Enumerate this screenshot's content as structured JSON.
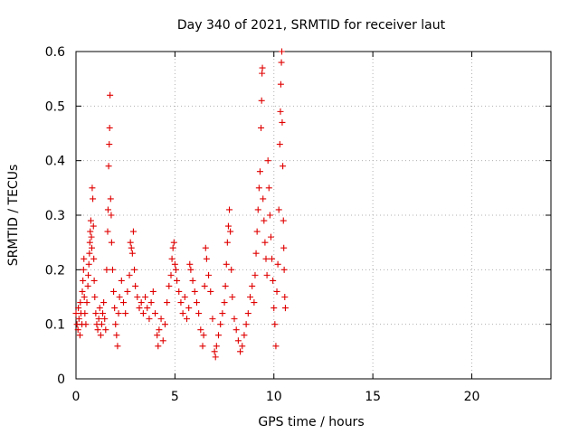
{
  "chart_data": {
    "type": "scatter",
    "title": "Day 340 of 2021, SRMTID for receiver laut",
    "xlabel": "GPS time / hours",
    "ylabel": "SRMTID / TECUs",
    "xlim": [
      0,
      24
    ],
    "ylim": [
      0,
      0.6
    ],
    "xticks": [
      0,
      5,
      10,
      15,
      20
    ],
    "xtick_labels": [
      "0",
      "5",
      "10",
      "15",
      "20"
    ],
    "yticks": [
      0,
      0.1,
      0.2,
      0.3,
      0.4,
      0.5,
      0.6
    ],
    "ytick_labels": [
      "0",
      "0.1",
      "0.2",
      "0.3",
      "0.4",
      "0.5",
      "0.6"
    ],
    "grid": true,
    "legend": "none",
    "marker": "+",
    "color": "#e00000",
    "series": [
      {
        "name": "SRMTID",
        "points": [
          [
            0.0,
            0.12
          ],
          [
            0.05,
            0.1
          ],
          [
            0.1,
            0.09
          ],
          [
            0.12,
            0.13
          ],
          [
            0.15,
            0.11
          ],
          [
            0.2,
            0.08
          ],
          [
            0.22,
            0.14
          ],
          [
            0.25,
            0.12
          ],
          [
            0.3,
            0.1
          ],
          [
            0.32,
            0.16
          ],
          [
            0.35,
            0.18
          ],
          [
            0.38,
            0.2
          ],
          [
            0.4,
            0.22
          ],
          [
            0.42,
            0.15
          ],
          [
            0.45,
            0.12
          ],
          [
            0.5,
            0.1
          ],
          [
            0.55,
            0.14
          ],
          [
            0.6,
            0.17
          ],
          [
            0.62,
            0.19
          ],
          [
            0.65,
            0.21
          ],
          [
            0.68,
            0.23
          ],
          [
            0.7,
            0.25
          ],
          [
            0.72,
            0.27
          ],
          [
            0.75,
            0.29
          ],
          [
            0.78,
            0.26
          ],
          [
            0.8,
            0.24
          ],
          [
            0.82,
            0.35
          ],
          [
            0.85,
            0.33
          ],
          [
            0.88,
            0.28
          ],
          [
            0.9,
            0.22
          ],
          [
            0.92,
            0.18
          ],
          [
            0.95,
            0.15
          ],
          [
            1.0,
            0.12
          ],
          [
            1.05,
            0.1
          ],
          [
            1.1,
            0.09
          ],
          [
            1.15,
            0.11
          ],
          [
            1.2,
            0.13
          ],
          [
            1.25,
            0.08
          ],
          [
            1.3,
            0.1
          ],
          [
            1.35,
            0.12
          ],
          [
            1.4,
            0.14
          ],
          [
            1.45,
            0.11
          ],
          [
            1.5,
            0.09
          ],
          [
            1.55,
            0.2
          ],
          [
            1.6,
            0.27
          ],
          [
            1.62,
            0.31
          ],
          [
            1.65,
            0.39
          ],
          [
            1.68,
            0.43
          ],
          [
            1.7,
            0.46
          ],
          [
            1.72,
            0.52
          ],
          [
            1.75,
            0.33
          ],
          [
            1.78,
            0.3
          ],
          [
            1.8,
            0.25
          ],
          [
            1.85,
            0.2
          ],
          [
            1.9,
            0.16
          ],
          [
            1.95,
            0.13
          ],
          [
            2.0,
            0.1
          ],
          [
            2.05,
            0.08
          ],
          [
            2.1,
            0.06
          ],
          [
            2.15,
            0.12
          ],
          [
            2.2,
            0.15
          ],
          [
            2.3,
            0.18
          ],
          [
            2.4,
            0.14
          ],
          [
            2.5,
            0.12
          ],
          [
            2.6,
            0.16
          ],
          [
            2.7,
            0.19
          ],
          [
            2.75,
            0.25
          ],
          [
            2.8,
            0.24
          ],
          [
            2.85,
            0.23
          ],
          [
            2.9,
            0.27
          ],
          [
            2.95,
            0.2
          ],
          [
            3.0,
            0.17
          ],
          [
            3.1,
            0.15
          ],
          [
            3.2,
            0.13
          ],
          [
            3.3,
            0.14
          ],
          [
            3.4,
            0.12
          ],
          [
            3.5,
            0.15
          ],
          [
            3.6,
            0.13
          ],
          [
            3.7,
            0.11
          ],
          [
            3.8,
            0.14
          ],
          [
            3.9,
            0.16
          ],
          [
            4.0,
            0.12
          ],
          [
            4.1,
            0.08
          ],
          [
            4.15,
            0.06
          ],
          [
            4.2,
            0.09
          ],
          [
            4.3,
            0.11
          ],
          [
            4.4,
            0.07
          ],
          [
            4.5,
            0.1
          ],
          [
            4.6,
            0.14
          ],
          [
            4.7,
            0.17
          ],
          [
            4.8,
            0.19
          ],
          [
            4.85,
            0.22
          ],
          [
            4.9,
            0.24
          ],
          [
            4.95,
            0.25
          ],
          [
            5.0,
            0.21
          ],
          [
            5.05,
            0.2
          ],
          [
            5.1,
            0.18
          ],
          [
            5.2,
            0.16
          ],
          [
            5.3,
            0.14
          ],
          [
            5.4,
            0.12
          ],
          [
            5.5,
            0.15
          ],
          [
            5.6,
            0.11
          ],
          [
            5.7,
            0.13
          ],
          [
            5.75,
            0.21
          ],
          [
            5.8,
            0.2
          ],
          [
            5.9,
            0.18
          ],
          [
            6.0,
            0.16
          ],
          [
            6.1,
            0.14
          ],
          [
            6.2,
            0.12
          ],
          [
            6.3,
            0.09
          ],
          [
            6.4,
            0.06
          ],
          [
            6.45,
            0.08
          ],
          [
            6.5,
            0.17
          ],
          [
            6.55,
            0.24
          ],
          [
            6.6,
            0.22
          ],
          [
            6.7,
            0.19
          ],
          [
            6.8,
            0.16
          ],
          [
            6.9,
            0.11
          ],
          [
            7.0,
            0.05
          ],
          [
            7.05,
            0.04
          ],
          [
            7.1,
            0.06
          ],
          [
            7.2,
            0.08
          ],
          [
            7.3,
            0.1
          ],
          [
            7.4,
            0.12
          ],
          [
            7.5,
            0.14
          ],
          [
            7.55,
            0.17
          ],
          [
            7.6,
            0.21
          ],
          [
            7.65,
            0.25
          ],
          [
            7.7,
            0.28
          ],
          [
            7.75,
            0.31
          ],
          [
            7.8,
            0.27
          ],
          [
            7.85,
            0.2
          ],
          [
            7.9,
            0.15
          ],
          [
            8.0,
            0.11
          ],
          [
            8.1,
            0.09
          ],
          [
            8.2,
            0.07
          ],
          [
            8.3,
            0.05
          ],
          [
            8.4,
            0.06
          ],
          [
            8.5,
            0.08
          ],
          [
            8.6,
            0.1
          ],
          [
            8.7,
            0.12
          ],
          [
            8.8,
            0.15
          ],
          [
            8.9,
            0.17
          ],
          [
            9.0,
            0.14
          ],
          [
            9.05,
            0.19
          ],
          [
            9.1,
            0.23
          ],
          [
            9.15,
            0.27
          ],
          [
            9.2,
            0.31
          ],
          [
            9.25,
            0.35
          ],
          [
            9.3,
            0.38
          ],
          [
            9.35,
            0.46
          ],
          [
            9.38,
            0.51
          ],
          [
            9.4,
            0.56
          ],
          [
            9.42,
            0.57
          ],
          [
            9.45,
            0.33
          ],
          [
            9.5,
            0.29
          ],
          [
            9.55,
            0.25
          ],
          [
            9.6,
            0.22
          ],
          [
            9.65,
            0.19
          ],
          [
            9.7,
            0.4
          ],
          [
            9.75,
            0.35
          ],
          [
            9.8,
            0.3
          ],
          [
            9.85,
            0.26
          ],
          [
            9.9,
            0.22
          ],
          [
            9.95,
            0.18
          ],
          [
            10.0,
            0.13
          ],
          [
            10.05,
            0.1
          ],
          [
            10.1,
            0.06
          ],
          [
            10.15,
            0.16
          ],
          [
            10.2,
            0.21
          ],
          [
            10.25,
            0.31
          ],
          [
            10.3,
            0.43
          ],
          [
            10.33,
            0.49
          ],
          [
            10.35,
            0.54
          ],
          [
            10.38,
            0.58
          ],
          [
            10.4,
            0.6
          ],
          [
            10.42,
            0.47
          ],
          [
            10.45,
            0.39
          ],
          [
            10.48,
            0.29
          ],
          [
            10.5,
            0.24
          ],
          [
            10.52,
            0.2
          ],
          [
            10.55,
            0.15
          ],
          [
            10.58,
            0.13
          ]
        ]
      }
    ]
  }
}
